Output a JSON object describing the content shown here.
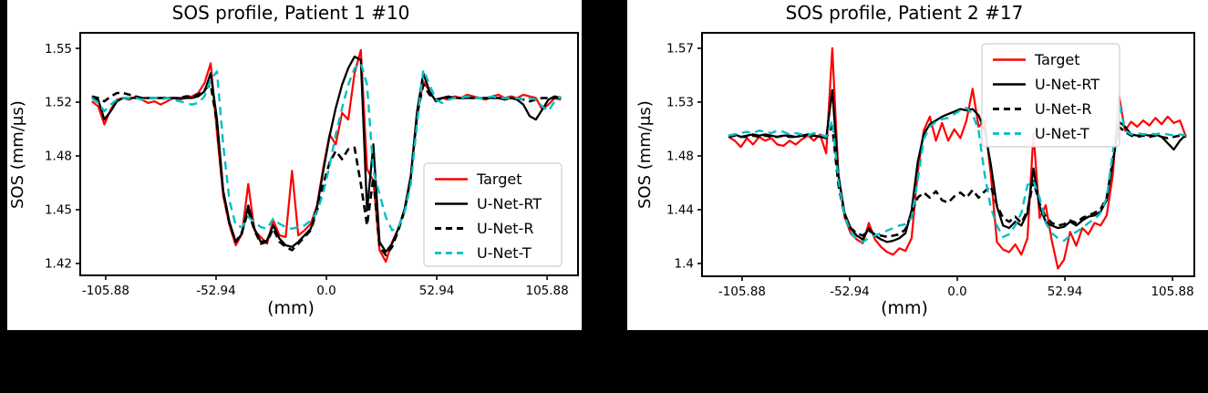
{
  "chart_data": [
    {
      "type": "line",
      "title": "SOS profile, Patient 1 #10",
      "xlabel": "(mm)",
      "ylabel": "SOS (mm/μs)",
      "grid": false,
      "legend_position": "center-right",
      "xlim": [
        -118.1,
        120.7
      ],
      "ylim": [
        1.4128,
        1.5594
      ],
      "x_ticks": {
        "values": [
          -105.88,
          -52.94,
          0,
          52.94,
          105.88
        ],
        "labels": [
          "-105.88",
          "-52.94",
          "0.0",
          "52.94",
          "105.88"
        ]
      },
      "y_ticks": {
        "values": [
          1.55,
          1.5175,
          1.485,
          1.4525,
          1.42
        ],
        "labels": [
          "1.55",
          "1.52",
          "1.48",
          "1.45",
          "1.42"
        ]
      },
      "x": [
        -112.5,
        -109.5,
        -106.5,
        -103.5,
        -100.5,
        -97.5,
        -94.5,
        -91.5,
        -88.5,
        -85.5,
        -82.5,
        -79.5,
        -76.5,
        -73.5,
        -70.5,
        -67.5,
        -64.5,
        -61.5,
        -58.5,
        -55.5,
        -52.5,
        -49.5,
        -46.5,
        -43.5,
        -40.5,
        -37.5,
        -34.5,
        -31.5,
        -28.5,
        -25.5,
        -22.5,
        -19.5,
        -16.5,
        -13.5,
        -10.5,
        -7.5,
        -4.5,
        -1.5,
        1.5,
        4.5,
        7.5,
        10.5,
        13.5,
        16.5,
        19.5,
        22.5,
        25.5,
        28.5,
        31.5,
        34.5,
        37.5,
        40.5,
        43.5,
        46.5,
        49.5,
        52.5,
        55.5,
        58.5,
        61.5,
        64.5,
        67.5,
        70.5,
        73.5,
        76.5,
        79.5,
        82.5,
        85.5,
        88.5,
        91.5,
        94.5,
        97.5,
        100.5,
        103.5,
        106.5,
        109.5,
        112.5
      ],
      "series": [
        {
          "name": "Target",
          "color": "#ff0000",
          "style": "solid",
          "width": 2.2,
          "dash": null,
          "values": [
            1.518,
            1.515,
            1.504,
            1.513,
            1.519,
            1.52,
            1.519,
            1.521,
            1.519,
            1.517,
            1.518,
            1.516,
            1.518,
            1.52,
            1.519,
            1.52,
            1.521,
            1.523,
            1.529,
            1.541,
            1.499,
            1.461,
            1.443,
            1.431,
            1.438,
            1.468,
            1.44,
            1.436,
            1.432,
            1.446,
            1.437,
            1.436,
            1.476,
            1.437,
            1.44,
            1.444,
            1.455,
            1.478,
            1.498,
            1.492,
            1.511,
            1.507,
            1.535,
            1.549,
            1.477,
            1.47,
            1.428,
            1.421,
            1.433,
            1.441,
            1.452,
            1.472,
            1.509,
            1.53,
            1.524,
            1.518,
            1.52,
            1.519,
            1.521,
            1.52,
            1.522,
            1.521,
            1.52,
            1.519,
            1.521,
            1.522,
            1.52,
            1.521,
            1.52,
            1.522,
            1.521,
            1.52,
            1.513,
            1.516,
            1.52,
            1.519
          ]
        },
        {
          "name": "U-Net-RT",
          "color": "#000000",
          "style": "solid",
          "width": 2.3,
          "dash": null,
          "values": [
            1.52,
            1.519,
            1.507,
            1.512,
            1.518,
            1.52,
            1.52,
            1.52,
            1.52,
            1.52,
            1.52,
            1.52,
            1.52,
            1.52,
            1.52,
            1.52,
            1.52,
            1.521,
            1.524,
            1.535,
            1.507,
            1.464,
            1.445,
            1.433,
            1.438,
            1.455,
            1.441,
            1.433,
            1.434,
            1.443,
            1.435,
            1.431,
            1.43,
            1.433,
            1.437,
            1.441,
            1.454,
            1.476,
            1.497,
            1.514,
            1.528,
            1.538,
            1.545,
            1.543,
            1.452,
            1.492,
            1.433,
            1.427,
            1.432,
            1.441,
            1.453,
            1.473,
            1.512,
            1.535,
            1.524,
            1.518,
            1.52,
            1.521,
            1.52,
            1.52,
            1.52,
            1.52,
            1.52,
            1.52,
            1.52,
            1.52,
            1.519,
            1.52,
            1.519,
            1.516,
            1.509,
            1.507,
            1.513,
            1.519,
            1.521,
            1.52
          ]
        },
        {
          "name": "U-Net-R",
          "color": "#000000",
          "style": "dashed",
          "width": 2.6,
          "dash": [
            8,
            5
          ],
          "values": [
            1.521,
            1.52,
            1.518,
            1.521,
            1.523,
            1.523,
            1.522,
            1.521,
            1.52,
            1.52,
            1.52,
            1.52,
            1.52,
            1.52,
            1.52,
            1.521,
            1.521,
            1.522,
            1.525,
            1.528,
            1.505,
            1.463,
            1.444,
            1.433,
            1.439,
            1.452,
            1.44,
            1.432,
            1.433,
            1.441,
            1.433,
            1.43,
            1.428,
            1.432,
            1.436,
            1.44,
            1.452,
            1.468,
            1.481,
            1.488,
            1.483,
            1.489,
            1.49,
            1.468,
            1.443,
            1.472,
            1.43,
            1.425,
            1.43,
            1.44,
            1.452,
            1.472,
            1.51,
            1.528,
            1.522,
            1.519,
            1.52,
            1.52,
            1.52,
            1.52,
            1.52,
            1.52,
            1.52,
            1.52,
            1.52,
            1.52,
            1.52,
            1.52,
            1.52,
            1.519,
            1.518,
            1.519,
            1.52,
            1.52,
            1.52,
            1.52
          ]
        },
        {
          "name": "U-Net-T",
          "color": "#00bfc4",
          "style": "dashed",
          "width": 2.4,
          "dash": [
            9,
            6
          ],
          "values": [
            1.52,
            1.517,
            1.512,
            1.516,
            1.519,
            1.52,
            1.52,
            1.52,
            1.519,
            1.52,
            1.52,
            1.519,
            1.52,
            1.519,
            1.518,
            1.517,
            1.516,
            1.517,
            1.521,
            1.531,
            1.536,
            1.492,
            1.458,
            1.443,
            1.442,
            1.448,
            1.445,
            1.442,
            1.441,
            1.447,
            1.444,
            1.442,
            1.441,
            1.442,
            1.443,
            1.446,
            1.451,
            1.463,
            1.479,
            1.498,
            1.514,
            1.528,
            1.538,
            1.541,
            1.528,
            1.476,
            1.462,
            1.448,
            1.44,
            1.442,
            1.451,
            1.468,
            1.505,
            1.537,
            1.528,
            1.519,
            1.517,
            1.519,
            1.52,
            1.52,
            1.521,
            1.52,
            1.52,
            1.52,
            1.521,
            1.52,
            1.52,
            1.52,
            1.52,
            1.519,
            1.52,
            1.519,
            1.515,
            1.512,
            1.518,
            1.521
          ]
        }
      ]
    },
    {
      "type": "line",
      "title": "SOS profile, Patient 2 #17",
      "xlabel": "(mm)",
      "ylabel": "SOS (mm/μs)",
      "grid": false,
      "legend_position": "upper-right",
      "xlim": [
        -125.6,
        116.6
      ],
      "ylim": [
        1.3899,
        1.5822
      ],
      "x_ticks": {
        "values": [
          -105.88,
          -52.94,
          0,
          52.94,
          105.88
        ],
        "labels": [
          "-105.88",
          "-52.94",
          "0.0",
          "52.94",
          "105.88"
        ]
      },
      "y_ticks": {
        "values": [
          1.57,
          1.5275,
          1.485,
          1.4425,
          1.4
        ],
        "labels": [
          "1.57",
          "1.53",
          "1.48",
          "1.44",
          "1.4"
        ]
      },
      "x": [
        -112.5,
        -109.5,
        -106.5,
        -103.5,
        -100.5,
        -97.5,
        -94.5,
        -91.5,
        -88.5,
        -85.5,
        -82.5,
        -79.5,
        -76.5,
        -73.5,
        -70.5,
        -67.5,
        -64.5,
        -61.5,
        -58.5,
        -55.5,
        -52.5,
        -49.5,
        -46.5,
        -43.5,
        -40.5,
        -37.5,
        -34.5,
        -31.5,
        -28.5,
        -25.5,
        -22.5,
        -19.5,
        -16.5,
        -13.5,
        -10.5,
        -7.5,
        -4.5,
        -1.5,
        1.5,
        4.5,
        7.5,
        10.5,
        13.5,
        16.5,
        19.5,
        22.5,
        25.5,
        28.5,
        31.5,
        34.5,
        37.5,
        40.5,
        43.5,
        46.5,
        49.5,
        52.5,
        55.5,
        58.5,
        61.5,
        64.5,
        67.5,
        70.5,
        73.5,
        76.5,
        79.5,
        82.5,
        85.5,
        88.5,
        91.5,
        94.5,
        97.5,
        100.5,
        103.5,
        106.5,
        109.5,
        112.5
      ],
      "series": [
        {
          "name": "Target",
          "color": "#ff0000",
          "style": "solid",
          "width": 2.2,
          "dash": null,
          "values": [
            1.5,
            1.497,
            1.492,
            1.499,
            1.494,
            1.5,
            1.497,
            1.499,
            1.494,
            1.493,
            1.497,
            1.494,
            1.498,
            1.501,
            1.497,
            1.502,
            1.487,
            1.57,
            1.47,
            1.437,
            1.424,
            1.419,
            1.416,
            1.432,
            1.419,
            1.413,
            1.409,
            1.407,
            1.412,
            1.41,
            1.42,
            1.472,
            1.505,
            1.516,
            1.497,
            1.511,
            1.497,
            1.506,
            1.499,
            1.513,
            1.538,
            1.508,
            1.513,
            1.47,
            1.417,
            1.411,
            1.409,
            1.415,
            1.407,
            1.42,
            1.503,
            1.436,
            1.446,
            1.418,
            1.396,
            1.403,
            1.425,
            1.414,
            1.428,
            1.423,
            1.432,
            1.43,
            1.438,
            1.47,
            1.533,
            1.505,
            1.512,
            1.508,
            1.513,
            1.509,
            1.515,
            1.51,
            1.516,
            1.511,
            1.513,
            1.5
          ]
        },
        {
          "name": "U-Net-RT",
          "color": "#000000",
          "style": "solid",
          "width": 2.3,
          "dash": null,
          "values": [
            1.501,
            1.502,
            1.5,
            1.501,
            1.502,
            1.501,
            1.502,
            1.501,
            1.5,
            1.501,
            1.501,
            1.5,
            1.501,
            1.502,
            1.501,
            1.5,
            1.499,
            1.537,
            1.47,
            1.44,
            1.428,
            1.422,
            1.419,
            1.428,
            1.422,
            1.419,
            1.417,
            1.418,
            1.42,
            1.424,
            1.442,
            1.48,
            1.502,
            1.51,
            1.513,
            1.516,
            1.518,
            1.52,
            1.522,
            1.521,
            1.522,
            1.517,
            1.505,
            1.478,
            1.445,
            1.43,
            1.428,
            1.433,
            1.43,
            1.44,
            1.475,
            1.445,
            1.433,
            1.43,
            1.428,
            1.429,
            1.433,
            1.43,
            1.434,
            1.437,
            1.438,
            1.441,
            1.45,
            1.48,
            1.512,
            1.508,
            1.502,
            1.501,
            1.502,
            1.501,
            1.502,
            1.5,
            1.495,
            1.49,
            1.497,
            1.502
          ]
        },
        {
          "name": "U-Net-R",
          "color": "#000000",
          "style": "dashed",
          "width": 2.6,
          "dash": [
            8,
            5
          ],
          "values": [
            1.5,
            1.501,
            1.5,
            1.5,
            1.501,
            1.5,
            1.501,
            1.5,
            1.5,
            1.501,
            1.5,
            1.5,
            1.501,
            1.5,
            1.501,
            1.5,
            1.5,
            1.508,
            1.462,
            1.438,
            1.428,
            1.424,
            1.422,
            1.426,
            1.423,
            1.422,
            1.421,
            1.422,
            1.423,
            1.427,
            1.44,
            1.452,
            1.456,
            1.452,
            1.457,
            1.45,
            1.448,
            1.453,
            1.456,
            1.452,
            1.458,
            1.452,
            1.457,
            1.461,
            1.446,
            1.436,
            1.433,
            1.437,
            1.432,
            1.442,
            1.465,
            1.447,
            1.437,
            1.432,
            1.43,
            1.431,
            1.434,
            1.432,
            1.436,
            1.438,
            1.44,
            1.443,
            1.452,
            1.482,
            1.508,
            1.504,
            1.501,
            1.5,
            1.501,
            1.5,
            1.501,
            1.5,
            1.499,
            1.5,
            1.501,
            1.5
          ]
        },
        {
          "name": "U-Net-T",
          "color": "#00bfc4",
          "style": "dashed",
          "width": 2.4,
          "dash": [
            9,
            6
          ],
          "values": [
            1.501,
            1.502,
            1.503,
            1.504,
            1.503,
            1.505,
            1.504,
            1.503,
            1.505,
            1.504,
            1.502,
            1.503,
            1.502,
            1.501,
            1.503,
            1.502,
            1.5,
            1.513,
            1.465,
            1.438,
            1.425,
            1.419,
            1.417,
            1.42,
            1.422,
            1.424,
            1.426,
            1.428,
            1.43,
            1.431,
            1.436,
            1.466,
            1.498,
            1.508,
            1.512,
            1.514,
            1.515,
            1.518,
            1.521,
            1.523,
            1.518,
            1.505,
            1.47,
            1.444,
            1.43,
            1.421,
            1.423,
            1.43,
            1.44,
            1.462,
            1.465,
            1.452,
            1.432,
            1.424,
            1.42,
            1.418,
            1.422,
            1.425,
            1.428,
            1.432,
            1.435,
            1.44,
            1.452,
            1.488,
            1.528,
            1.505,
            1.502,
            1.503,
            1.502,
            1.503,
            1.502,
            1.503,
            1.502,
            1.501,
            1.502,
            1.501
          ]
        }
      ]
    }
  ]
}
